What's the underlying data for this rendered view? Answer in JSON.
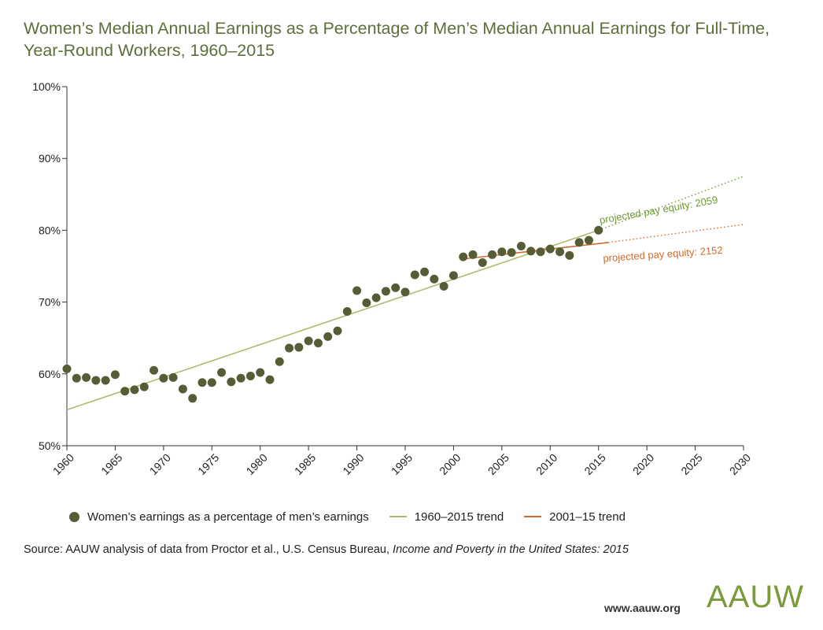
{
  "title": "Women’s Median Annual Earnings as a Percentage of Men’s Median Annual Earnings for Full-Time, Year-Round Workers, 1960–2015",
  "colors": {
    "title": "#5e6e3a",
    "points": "#565c36",
    "trend_long": "#b5b86c",
    "trend_short": "#d06a2c",
    "projection_long": "#6f9a32",
    "projection_short": "#d06a2c"
  },
  "chart_data": {
    "type": "scatter",
    "title": "Women’s Median Annual Earnings as a Percentage of Men’s Median Annual Earnings for Full-Time, Year-Round Workers, 1960–2015",
    "xlim": [
      1960,
      2030
    ],
    "ylim": [
      50,
      100
    ],
    "x_ticks": [
      1960,
      1965,
      1970,
      1975,
      1980,
      1985,
      1990,
      1995,
      2000,
      2005,
      2010,
      2015,
      2020,
      2025,
      2030
    ],
    "y_ticks": [
      50,
      60,
      70,
      80,
      90,
      100
    ],
    "y_tick_labels": [
      "50%",
      "60%",
      "70%",
      "80%",
      "90%",
      "100%"
    ],
    "grid": false,
    "series": [
      {
        "name": "Women’s earnings as a percentage of men’s earnings",
        "type": "scatter",
        "x": [
          1960,
          1961,
          1962,
          1963,
          1964,
          1965,
          1966,
          1967,
          1968,
          1969,
          1970,
          1971,
          1972,
          1973,
          1974,
          1975,
          1976,
          1977,
          1978,
          1979,
          1980,
          1981,
          1982,
          1983,
          1984,
          1985,
          1986,
          1987,
          1988,
          1989,
          1990,
          1991,
          1992,
          1993,
          1994,
          1995,
          1996,
          1997,
          1998,
          1999,
          2000,
          2001,
          2002,
          2003,
          2004,
          2005,
          2006,
          2007,
          2008,
          2009,
          2010,
          2011,
          2012,
          2013,
          2014,
          2015
        ],
        "y": [
          60.7,
          59.4,
          59.5,
          59.1,
          59.1,
          59.9,
          57.6,
          57.8,
          58.2,
          60.5,
          59.4,
          59.5,
          57.9,
          56.6,
          58.8,
          58.8,
          60.2,
          58.9,
          59.4,
          59.7,
          60.2,
          59.2,
          61.7,
          63.6,
          63.7,
          64.6,
          64.3,
          65.2,
          66.0,
          68.7,
          71.6,
          69.9,
          70.6,
          71.5,
          72.0,
          71.4,
          73.8,
          74.2,
          73.2,
          72.2,
          73.7,
          76.3,
          76.6,
          75.5,
          76.6,
          77.0,
          76.9,
          77.8,
          77.1,
          77.0,
          77.4,
          77.0,
          76.5,
          78.3,
          78.6,
          80.0
        ]
      },
      {
        "name": "1960–2015 trend",
        "type": "line",
        "x": [
          1960,
          2015
        ],
        "y": [
          55.0,
          80.0
        ]
      },
      {
        "name": "2001–15 trend",
        "type": "line",
        "x": [
          2001,
          2016
        ],
        "y": [
          76.0,
          78.3
        ]
      }
    ],
    "projections": [
      {
        "label": "projected pay equity: 2059",
        "x": [
          2015,
          2030
        ],
        "y": [
          80.0,
          87.5
        ]
      },
      {
        "label": "projected pay equity: 2152",
        "x": [
          2016,
          2030
        ],
        "y": [
          78.3,
          80.8
        ]
      }
    ],
    "legend_placement": "bottom"
  },
  "legend": [
    {
      "label": "Women’s earnings as a percentage of men’s earnings",
      "kind": "dot"
    },
    {
      "label": "1960–2015 trend",
      "kind": "line-long"
    },
    {
      "label": "2001–15 trend",
      "kind": "line-short"
    }
  ],
  "source": {
    "prefix": "Source: AAUW analysis of data from Proctor et al., U.S. Census Bureau, ",
    "italic": "Income and Poverty in the United States: 2015"
  },
  "footer": {
    "url": "www.aauw.org",
    "logo_text": "AAUW"
  }
}
